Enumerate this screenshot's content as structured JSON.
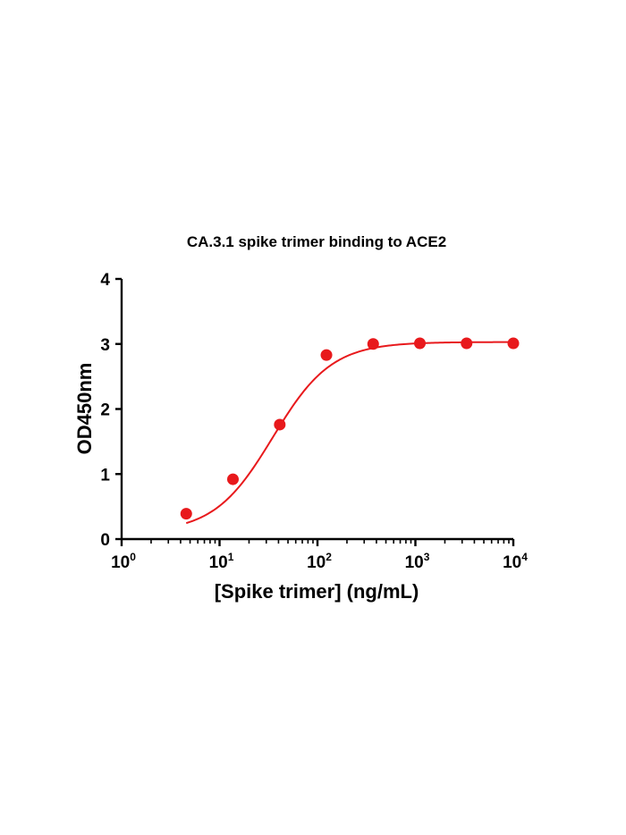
{
  "chart_data": {
    "type": "scatter",
    "title": "CA.3.1 spike trimer binding to ACE2",
    "xlabel": "[Spike trimer] (ng/mL)",
    "ylabel": "OD450nm",
    "x_scale": "log10",
    "xlim": [
      1,
      10000
    ],
    "ylim": [
      0,
      4
    ],
    "x_ticks": [
      {
        "base": "10",
        "exp": "0"
      },
      {
        "base": "10",
        "exp": "1"
      },
      {
        "base": "10",
        "exp": "2"
      },
      {
        "base": "10",
        "exp": "3"
      },
      {
        "base": "10",
        "exp": "4"
      }
    ],
    "y_ticks": [
      "0",
      "1",
      "2",
      "3",
      "4"
    ],
    "grid": false,
    "color": "#e8191c",
    "series": [
      {
        "points": [
          {
            "x": 4.57,
            "y": 0.39
          },
          {
            "x": 13.7,
            "y": 0.92
          },
          {
            "x": 41.2,
            "y": 1.76
          },
          {
            "x": 123.5,
            "y": 2.83
          },
          {
            "x": 370.4,
            "y": 3.0
          },
          {
            "x": 1111,
            "y": 3.01
          },
          {
            "x": 3333,
            "y": 3.01
          },
          {
            "x": 10000,
            "y": 3.01
          }
        ],
        "fit": {
          "model": "4PL",
          "bottom": 0.1,
          "top": 3.03,
          "ec50": 35,
          "hill": 1.45
        }
      }
    ]
  }
}
